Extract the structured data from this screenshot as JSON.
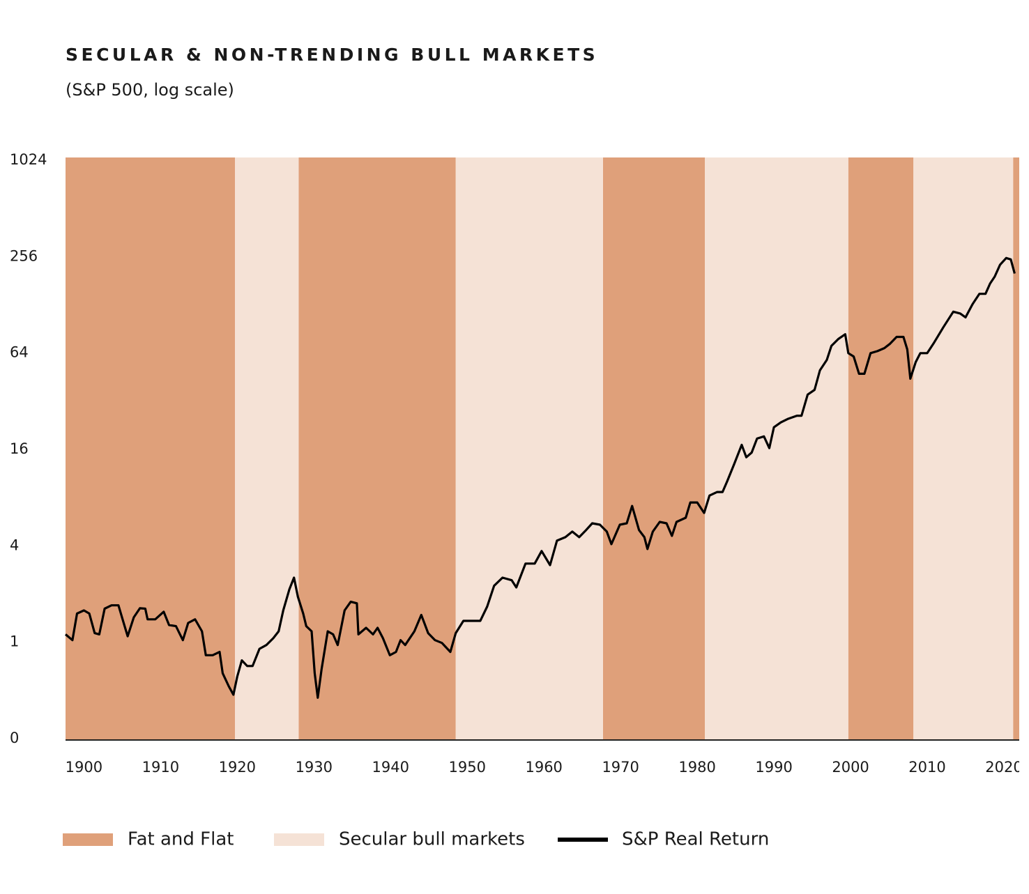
{
  "chart_data": {
    "type": "line",
    "title": "SECULAR & NON-TRENDING BULL MARKETS",
    "subtitle": "(S&P 500, log scale)",
    "yscale": "log",
    "xlim": [
      1897.6,
      2022
    ],
    "xticks": [
      1900,
      1910,
      1920,
      1930,
      1940,
      1950,
      1960,
      1970,
      1980,
      1990,
      2000,
      2010,
      2020
    ],
    "ylim": [
      0.25,
      1024
    ],
    "yticks": [
      {
        "value": 0.25,
        "label": "0"
      },
      1,
      4,
      16,
      64,
      256,
      1024
    ],
    "regimes": [
      {
        "name": "Fat and Flat",
        "color": "#dfa07a",
        "periods": [
          [
            1897.6,
            1919.7
          ],
          [
            1928,
            1948.5
          ],
          [
            1967.7,
            1981
          ],
          [
            1999.7,
            2008.2
          ],
          [
            2021.2,
            2022
          ]
        ]
      },
      {
        "name": "Secular bull markets",
        "color": "#f5e2d6",
        "periods": [
          [
            1919.7,
            1928
          ],
          [
            1948.5,
            1967.7
          ],
          [
            1981,
            1999.7
          ],
          [
            2008.2,
            2021.2
          ]
        ]
      }
    ],
    "series": [
      {
        "name": "S&P Real Return",
        "color": "#000000",
        "x": [
          1897.6,
          1898.5,
          1899.1,
          1900,
          1900.7,
          1901.4,
          1902,
          1902.7,
          1903.6,
          1904.5,
          1905.1,
          1905.7,
          1906.5,
          1907.3,
          1908,
          1908.3,
          1909.3,
          1910.4,
          1911.1,
          1912,
          1912.9,
          1913.6,
          1914.5,
          1915.4,
          1915.9,
          1916.8,
          1917.7,
          1918.1,
          1918.9,
          1919.5,
          1920,
          1920.6,
          1921.3,
          1922,
          1922.9,
          1923.8,
          1924.7,
          1925.4,
          1926,
          1926.8,
          1927.4,
          1927.9,
          1928.6,
          1929,
          1929.7,
          1930.1,
          1930.5,
          1931,
          1931.8,
          1932.5,
          1933.1,
          1934,
          1934.8,
          1935.6,
          1935.8,
          1936.8,
          1937.7,
          1938.3,
          1939,
          1939.9,
          1940.7,
          1941.3,
          1941.9,
          1943.1,
          1944,
          1944.9,
          1945.8,
          1946.7,
          1947.8,
          1948.5,
          1949.5,
          1950.6,
          1951.7,
          1952.6,
          1953.5,
          1954.6,
          1955.8,
          1956.4,
          1957.6,
          1958.8,
          1959.7,
          1960.8,
          1961.7,
          1962.8,
          1963.7,
          1964.6,
          1965.5,
          1966.3,
          1967.3,
          1968.2,
          1968.8,
          1969.9,
          1970.8,
          1971.5,
          1972.4,
          1973.1,
          1973.5,
          1974.2,
          1975.1,
          1976,
          1976.7,
          1977.3,
          1978.5,
          1979.1,
          1980,
          1980.9,
          1981.6,
          1982.6,
          1983.3,
          1983.9,
          1984.8,
          1985.8,
          1986.4,
          1987.1,
          1987.8,
          1988.7,
          1989.4,
          1990,
          1990.9,
          1991.8,
          1993,
          1993.6,
          1994.4,
          1995.3,
          1996,
          1996.9,
          1997.5,
          1998.4,
          1999.3,
          1999.7,
          2000.4,
          2001.1,
          2001.8,
          2002.6,
          2003.5,
          2004.4,
          2005.1,
          2006,
          2006.9,
          2007.4,
          2007.8,
          2008.5,
          2009.1,
          2010,
          2010.9,
          2012.1,
          2013.4,
          2014.3,
          2015,
          2015.9,
          2016.8,
          2017.6,
          2018.2,
          2018.8,
          2019.5,
          2020.3,
          2020.9,
          2021.4
        ],
        "values": [
          1.12,
          1.03,
          1.51,
          1.58,
          1.51,
          1.14,
          1.12,
          1.62,
          1.7,
          1.7,
          1.36,
          1.09,
          1.43,
          1.63,
          1.62,
          1.39,
          1.39,
          1.55,
          1.28,
          1.26,
          1.03,
          1.32,
          1.39,
          1.17,
          0.83,
          0.83,
          0.87,
          0.64,
          0.53,
          0.47,
          0.61,
          0.77,
          0.71,
          0.71,
          0.91,
          0.96,
          1.06,
          1.17,
          1.58,
          2.14,
          2.53,
          1.93,
          1.51,
          1.26,
          1.17,
          0.64,
          0.45,
          0.68,
          1.17,
          1.12,
          0.96,
          1.58,
          1.79,
          1.75,
          1.12,
          1.23,
          1.12,
          1.23,
          1.06,
          0.83,
          0.87,
          1.03,
          0.96,
          1.17,
          1.48,
          1.14,
          1.03,
          0.99,
          0.87,
          1.14,
          1.36,
          1.36,
          1.36,
          1.67,
          2.25,
          2.53,
          2.44,
          2.2,
          3.1,
          3.1,
          3.71,
          3.03,
          4.31,
          4.53,
          4.91,
          4.53,
          5.02,
          5.53,
          5.42,
          4.91,
          4.1,
          5.42,
          5.53,
          7.1,
          5.02,
          4.53,
          3.82,
          4.91,
          5.64,
          5.53,
          4.62,
          5.64,
          5.99,
          7.46,
          7.46,
          6.42,
          8.24,
          8.67,
          8.67,
          10.1,
          12.9,
          17.1,
          14.3,
          15.3,
          18.7,
          19.3,
          16.3,
          22,
          23.6,
          24.8,
          26,
          26,
          35.2,
          37.7,
          49.9,
          58,
          70.9,
          78.3,
          83.9,
          63.9,
          60.9,
          47.5,
          47.5,
          63.9,
          65.8,
          68.7,
          72.9,
          80.7,
          80.7,
          67.4,
          44.3,
          56.2,
          63.9,
          63.9,
          74.4,
          92.7,
          116,
          113,
          107,
          129,
          150,
          150,
          174,
          192,
          228,
          251,
          246,
          201
        ]
      }
    ]
  }
}
